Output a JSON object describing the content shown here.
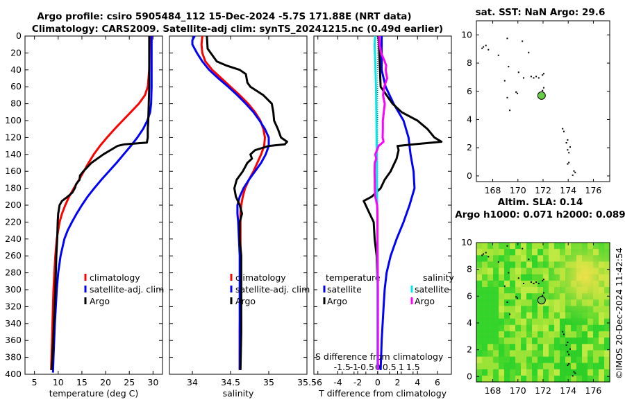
{
  "titles": {
    "line1": "Argo profile: csiro 5905484_112 15-Dec-2024 -5.7S 171.88E (NRT data)",
    "line2": "Climatology: CARS2009. Satellite-adj clim: synTS_20241215.nc (0.49d earlier)"
  },
  "credit": "©IMOS 20-Dec-2024 11:42:54",
  "colors": {
    "climatology": "#ff0000",
    "satellite": "#0000ff",
    "argo": "#000000",
    "t_satellite": "#0000ff",
    "s_satellite": "#00e8e8",
    "s_argo": "#ff00ff",
    "coast": "#000000",
    "argo_marker": "#66cc44"
  },
  "chart_data": [
    {
      "type": "line",
      "name": "temperature-panel",
      "xlabel": "temperature (deg C)",
      "ylabel": "",
      "xlim": [
        3,
        32
      ],
      "ylim": [
        400,
        0
      ],
      "xticks": [
        "5",
        "10",
        "15",
        "20",
        "25",
        "30"
      ],
      "xtick_values": [
        5,
        10,
        15,
        20,
        25,
        30
      ],
      "yticks": [
        "0",
        "20",
        "40",
        "60",
        "80",
        "100",
        "120",
        "140",
        "160",
        "180",
        "200",
        "220",
        "240",
        "260",
        "280",
        "300",
        "320",
        "340",
        "360",
        "380",
        "400"
      ],
      "ytick_values": [
        0,
        20,
        40,
        60,
        80,
        100,
        120,
        140,
        160,
        180,
        200,
        220,
        240,
        260,
        280,
        300,
        320,
        340,
        360,
        380,
        400
      ],
      "legend": [
        "climatology",
        "satellite-adj. clim",
        "Argo"
      ],
      "series": [
        {
          "name": "climatology",
          "color": "#ff0000",
          "depth": [
            0,
            40,
            60,
            70,
            80,
            90,
            100,
            110,
            120,
            130,
            140,
            150,
            160,
            170,
            180,
            190,
            200,
            210,
            220,
            240,
            260,
            280,
            300,
            340,
            380,
            395
          ],
          "values": [
            29.3,
            29.2,
            28.9,
            28.3,
            27.0,
            25.3,
            23.6,
            21.9,
            20.3,
            18.8,
            17.5,
            16.4,
            15.4,
            14.4,
            13.3,
            12.3,
            11.5,
            10.8,
            10.3,
            9.7,
            9.4,
            9.2,
            9.0,
            8.8,
            8.6,
            8.5
          ]
        },
        {
          "name": "satellite-adj. clim",
          "color": "#0000ff",
          "depth": [
            0,
            60,
            80,
            90,
            100,
            110,
            120,
            130,
            140,
            150,
            160,
            170,
            180,
            190,
            200,
            210,
            220,
            230,
            240,
            260,
            280,
            300,
            340,
            380,
            398
          ],
          "values": [
            29.7,
            29.7,
            29.6,
            29.4,
            28.8,
            27.9,
            26.7,
            25.3,
            23.8,
            22.3,
            20.7,
            19.1,
            17.6,
            16.2,
            15.0,
            13.9,
            12.9,
            12.0,
            11.3,
            10.5,
            10.0,
            9.7,
            9.3,
            9.0,
            8.9
          ]
        },
        {
          "name": "Argo",
          "color": "#000000",
          "depth": [
            0,
            60,
            80,
            100,
            110,
            120,
            126,
            128,
            130,
            140,
            150,
            160,
            165,
            170,
            175,
            180,
            185,
            190,
            195,
            200,
            210,
            220,
            240,
            260,
            280,
            300,
            340,
            380,
            395
          ],
          "values": [
            29.2,
            29.2,
            29.1,
            29.0,
            28.9,
            28.9,
            28.7,
            24.0,
            22.5,
            19.5,
            17.0,
            15.3,
            14.6,
            14.5,
            13.8,
            13.5,
            13.0,
            12.0,
            10.8,
            10.3,
            10.0,
            9.9,
            9.8,
            9.6,
            9.5,
            9.4,
            9.1,
            8.8,
            8.6
          ]
        }
      ]
    },
    {
      "type": "line",
      "name": "salinity-panel",
      "xlabel": "salinity",
      "xlim": [
        33.7,
        35.5
      ],
      "ylim": [
        400,
        0
      ],
      "xticks": [
        "34",
        "34.5",
        "35",
        "35.5"
      ],
      "xtick_values": [
        34,
        34.5,
        35,
        35.5
      ],
      "legend": [
        "climatology",
        "satellite-adj. clim",
        "Argo"
      ],
      "series": [
        {
          "name": "climatology",
          "color": "#ff0000",
          "depth": [
            0,
            10,
            20,
            30,
            40,
            50,
            60,
            70,
            80,
            90,
            100,
            110,
            120,
            130,
            140,
            150,
            160,
            170,
            180,
            190,
            200,
            210,
            220,
            240,
            260,
            300,
            350,
            395
          ],
          "values": [
            34.13,
            34.12,
            34.13,
            34.17,
            34.26,
            34.38,
            34.5,
            34.62,
            34.73,
            34.82,
            34.89,
            34.93,
            34.95,
            34.94,
            34.9,
            34.85,
            34.8,
            34.74,
            34.69,
            34.66,
            34.64,
            34.63,
            34.63,
            34.63,
            34.63,
            34.63,
            34.62,
            34.62
          ]
        },
        {
          "name": "satellite-adj. clim",
          "color": "#0000ff",
          "depth": [
            0,
            5,
            10,
            20,
            30,
            40,
            50,
            60,
            70,
            80,
            90,
            100,
            110,
            120,
            130,
            140,
            150,
            160,
            170,
            180,
            190,
            200,
            210,
            220,
            240,
            260,
            300,
            350,
            395
          ],
          "values": [
            34.03,
            34.0,
            34.0,
            34.06,
            34.13,
            34.22,
            34.34,
            34.47,
            34.59,
            34.7,
            34.8,
            34.88,
            34.95,
            35.0,
            35.0,
            34.96,
            34.9,
            34.82,
            34.74,
            34.67,
            34.62,
            34.59,
            34.59,
            34.6,
            34.61,
            34.62,
            34.62,
            34.62,
            34.62
          ]
        },
        {
          "name": "Argo",
          "color": "#000000",
          "depth": [
            0,
            15,
            30,
            35,
            40,
            45,
            50,
            55,
            60,
            70,
            80,
            90,
            100,
            110,
            120,
            125,
            128,
            130,
            135,
            140,
            145,
            150,
            160,
            170,
            180,
            190,
            200,
            210,
            220,
            240,
            260,
            300,
            350,
            395
          ],
          "values": [
            34.19,
            34.2,
            34.32,
            34.45,
            34.62,
            34.7,
            34.71,
            34.72,
            34.76,
            34.93,
            35.04,
            35.06,
            35.07,
            35.12,
            35.16,
            35.24,
            35.21,
            35.0,
            34.82,
            34.76,
            34.78,
            34.72,
            34.66,
            34.58,
            34.55,
            34.57,
            34.62,
            34.65,
            34.62,
            34.62,
            34.64,
            34.64,
            34.64,
            34.63
          ]
        }
      ]
    },
    {
      "type": "line",
      "name": "difference-panel",
      "xlabel": "T difference from climatology",
      "xlabel_top": "S difference from climatology",
      "xlim": [
        -6.4,
        7.4
      ],
      "ylim": [
        400,
        0
      ],
      "xticks": [
        "-6",
        "-4",
        "-2",
        "0",
        "2",
        "4",
        "6"
      ],
      "xtick_values": [
        -6,
        -4,
        -2,
        0,
        2,
        4,
        6
      ],
      "sxticks": [
        "-1.5",
        "-1",
        "-0.5",
        "0",
        "0.5",
        "1",
        "1.5"
      ],
      "sxtick_values": [
        -1.5,
        -1,
        -0.5,
        0,
        0.5,
        1,
        1.5
      ],
      "legend_temperature": {
        "title": "temperature",
        "items": [
          "satellite",
          "Argo"
        ]
      },
      "legend_salinity": {
        "title": "salinity",
        "items": [
          "satellite",
          "Argo"
        ]
      },
      "series": [
        {
          "name": "T satellite",
          "color": "#0000ff",
          "depth": [
            0,
            40,
            60,
            80,
            100,
            120,
            140,
            160,
            180,
            200,
            220,
            240,
            260,
            280,
            300,
            320,
            340,
            360,
            380,
            395
          ],
          "values": [
            0.4,
            0.4,
            0.8,
            1.6,
            2.6,
            3.1,
            3.3,
            3.6,
            3.7,
            3.2,
            2.6,
            1.9,
            1.3,
            0.9,
            0.7,
            0.6,
            0.5,
            0.4,
            0.35,
            0.3
          ]
        },
        {
          "name": "T Argo",
          "color": "#000000",
          "depth": [
            0,
            60,
            80,
            90,
            100,
            110,
            120,
            125,
            128,
            130,
            135,
            140,
            145,
            160,
            170,
            180,
            190,
            195,
            200,
            210,
            220,
            240,
            260,
            300,
            340,
            380,
            395
          ],
          "values": [
            0.1,
            0.3,
            1.5,
            2.4,
            4.0,
            5.0,
            5.7,
            6.4,
            3.6,
            2.0,
            2.1,
            2.0,
            1.9,
            1.3,
            0.7,
            0.3,
            -0.6,
            -1.4,
            -1.2,
            -0.8,
            -0.4,
            -0.3,
            -0.1,
            0.0,
            0.0,
            0.0,
            0.0
          ]
        },
        {
          "name": "S satellite",
          "color": "#00e8e8",
          "depth": [
            0,
            10,
            30,
            60,
            100,
            130,
            150,
            170,
            200,
            240,
            300,
            395
          ],
          "values": [
            -0.1,
            -0.13,
            -0.1,
            -0.07,
            -0.05,
            -0.04,
            -0.03,
            -0.03,
            -0.02,
            -0.01,
            -0.01,
            -0.01
          ]
        },
        {
          "name": "S Argo",
          "color": "#ff00ff",
          "depth": [
            0,
            10,
            20,
            30,
            35,
            40,
            50,
            60,
            70,
            80,
            90,
            100,
            110,
            120,
            125,
            130,
            140,
            145,
            150,
            160,
            170,
            180,
            190,
            200,
            210,
            220,
            240,
            300,
            395
          ],
          "values": [
            0.06,
            0.08,
            0.15,
            0.3,
            0.36,
            0.34,
            0.4,
            0.28,
            0.23,
            0.3,
            0.26,
            0.22,
            0.22,
            0.21,
            0.25,
            0.04,
            -0.1,
            -0.06,
            -0.12,
            -0.13,
            -0.12,
            -0.12,
            -0.1,
            -0.02,
            -0.01,
            -0.01,
            -0.01,
            0.01,
            0.01
          ]
        }
      ]
    },
    {
      "type": "scatter",
      "name": "sst-map",
      "title": "sat. SST: NaN Argo: 29.6",
      "xlim": [
        166.7,
        177.3
      ],
      "ylim": [
        -0.4,
        11.0
      ],
      "xticks": [
        "168",
        "170",
        "172",
        "174",
        "176"
      ],
      "xtick_values": [
        168,
        170,
        172,
        174,
        176
      ],
      "yticks": [
        "0",
        "2",
        "4",
        "6",
        "8",
        "10"
      ],
      "ytick_values": [
        0,
        2,
        4,
        6,
        8,
        10
      ],
      "argo_position": [
        171.88,
        5.7
      ]
    },
    {
      "type": "heatmap",
      "name": "sla-map",
      "title_line1": "Altim. SLA: 0.14",
      "title_line2": "Argo h1000: 0.071 h2000: 0.089",
      "xlim": [
        166.7,
        177.3
      ],
      "ylim": [
        -0.4,
        10.0
      ],
      "xticks": [
        "168",
        "170",
        "172",
        "174",
        "176"
      ],
      "xtick_values": [
        168,
        170,
        172,
        174,
        176
      ],
      "yticks": [
        "0",
        "2",
        "4",
        "6",
        "8",
        "10"
      ],
      "ytick_values": [
        0,
        2,
        4,
        6,
        8,
        10
      ],
      "argo_position": [
        171.88,
        5.7
      ]
    }
  ]
}
